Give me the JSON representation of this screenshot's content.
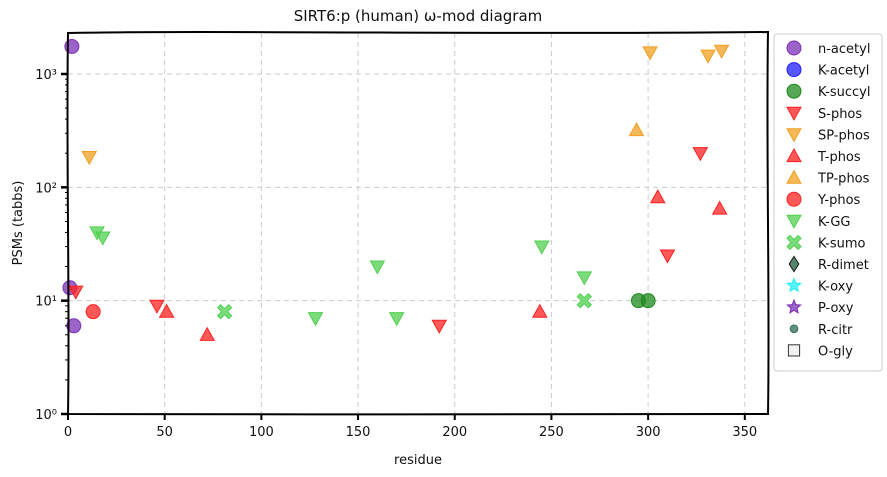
{
  "chart_data": {
    "type": "scatter",
    "title": "SIRT6:p (human) ω-mod diagram",
    "xlabel": "residue",
    "ylabel": "PSMs (tabbs)",
    "xlim": [
      0,
      362
    ],
    "ylim": [
      1,
      2300
    ],
    "yscale": "log",
    "xticks": [
      0,
      50,
      100,
      150,
      200,
      250,
      300,
      350
    ],
    "yticks": [
      1,
      10,
      100,
      1000
    ],
    "ytick_labels": [
      "10⁰",
      "10¹",
      "10²",
      "10³"
    ],
    "grid": true,
    "legend_position": "outside-right",
    "series": [
      {
        "name": "n-acetyl",
        "marker": "circle",
        "color": "#7b2fb5",
        "points": [
          [
            2,
            1750
          ],
          [
            3,
            6
          ],
          [
            1,
            13
          ]
        ]
      },
      {
        "name": "K-acetyl",
        "marker": "circle",
        "color": "#1f1fff",
        "points": []
      },
      {
        "name": "K-succyl",
        "marker": "circle",
        "color": "#1e8a1e",
        "points": [
          [
            295,
            10
          ],
          [
            300,
            10
          ]
        ]
      },
      {
        "name": "S-phos",
        "marker": "triangle-down",
        "color": "#ff2020",
        "points": [
          [
            4,
            12
          ],
          [
            46,
            9
          ],
          [
            192,
            6
          ],
          [
            310,
            25
          ],
          [
            327,
            200
          ]
        ]
      },
      {
        "name": "SP-phos",
        "marker": "triangle-down",
        "color": "#f0a020",
        "points": [
          [
            11,
            185
          ],
          [
            301,
            1550
          ],
          [
            331,
            1450
          ],
          [
            338,
            1600
          ]
        ]
      },
      {
        "name": "T-phos",
        "marker": "triangle-up",
        "color": "#ff2020",
        "points": [
          [
            51,
            8
          ],
          [
            72,
            5
          ],
          [
            244,
            8
          ],
          [
            305,
            82
          ],
          [
            337,
            65
          ]
        ]
      },
      {
        "name": "TP-phos",
        "marker": "triangle-up",
        "color": "#f0a020",
        "points": [
          [
            294,
            320
          ]
        ]
      },
      {
        "name": "Y-phos",
        "marker": "circle",
        "color": "#ff2020",
        "points": [
          [
            13,
            8
          ]
        ]
      },
      {
        "name": "K-GG",
        "marker": "triangle-down",
        "color": "#50d050",
        "points": [
          [
            15,
            40
          ],
          [
            18,
            36
          ],
          [
            128,
            7
          ],
          [
            160,
            20
          ],
          [
            170,
            7
          ],
          [
            245,
            30
          ],
          [
            267,
            16
          ]
        ]
      },
      {
        "name": "K-sumo",
        "marker": "x",
        "color": "#50d050",
        "points": [
          [
            81,
            8
          ],
          [
            267,
            10
          ]
        ]
      },
      {
        "name": "R-dimet",
        "marker": "diamond",
        "color": "#1e5a3a",
        "points": []
      },
      {
        "name": "K-oxy",
        "marker": "star",
        "color": "#20f0f0",
        "points": []
      },
      {
        "name": "P-oxy",
        "marker": "star",
        "color": "#7b2fb5",
        "points": []
      },
      {
        "name": "R-citr",
        "marker": "small-circle",
        "color": "#2e6e55",
        "points": []
      },
      {
        "name": "O-gly",
        "marker": "square",
        "color": "#eeeeee",
        "points": []
      }
    ]
  }
}
